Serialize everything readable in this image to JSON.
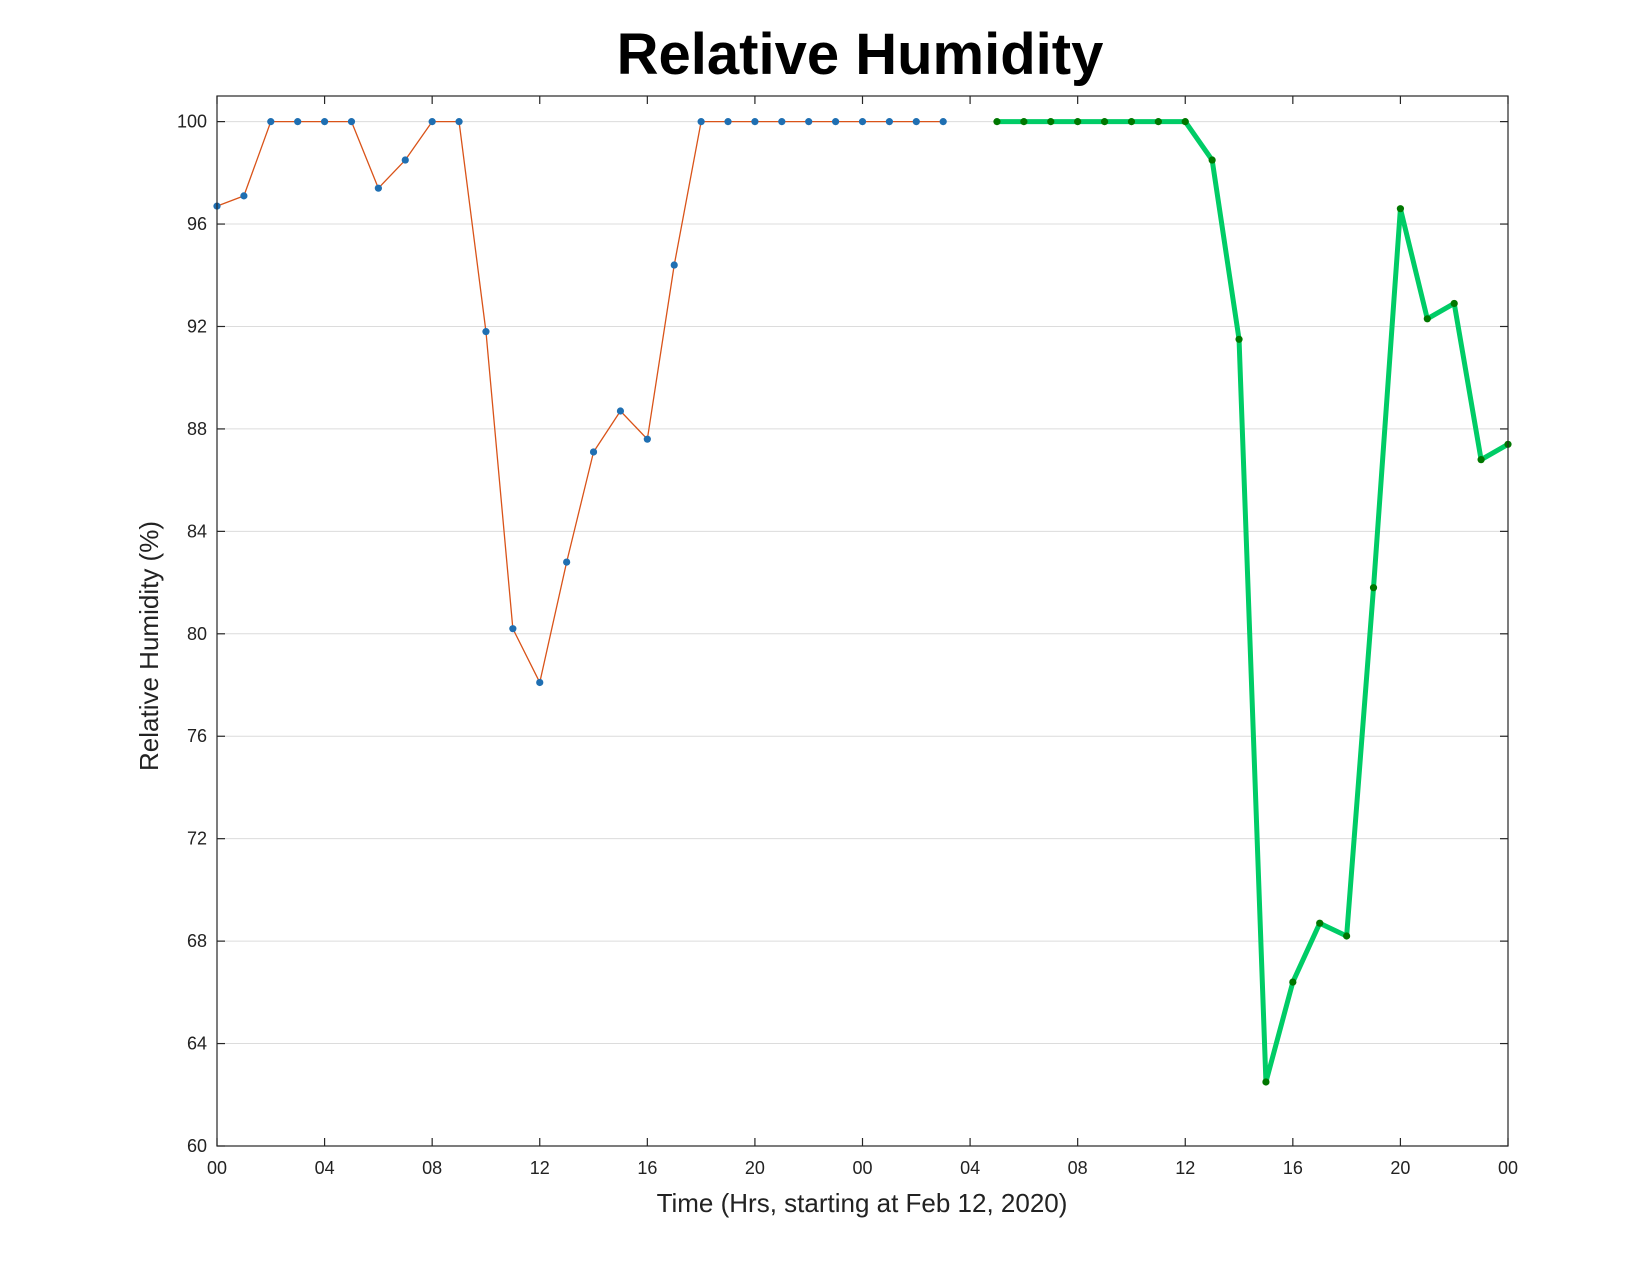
{
  "chart_data": {
    "type": "line",
    "title": "Relative Humidity",
    "xlabel": "Time (Hrs, starting at Feb 12, 2020)",
    "ylabel": "Relative Humidity (%)",
    "xlim": [
      0,
      48
    ],
    "ylim": [
      60,
      101
    ],
    "x_tick_values": [
      0,
      4,
      8,
      12,
      16,
      20,
      24,
      28,
      32,
      36,
      40,
      44,
      48
    ],
    "x_tick_labels": [
      "00",
      "04",
      "08",
      "12",
      "16",
      "20",
      "00",
      "04",
      "08",
      "12",
      "16",
      "20",
      "00"
    ],
    "y_ticks": [
      60,
      64,
      68,
      72,
      76,
      80,
      84,
      88,
      92,
      96,
      100
    ],
    "grid": "horizontal",
    "series": [
      {
        "color": "#d95319",
        "marker_color": "#1f6fb2",
        "x": [
          0,
          1,
          2,
          3,
          4,
          5,
          6,
          7,
          8,
          9,
          10,
          11,
          12,
          13,
          14,
          15,
          16,
          17,
          18,
          19,
          20,
          21,
          22,
          23,
          24,
          25,
          26,
          27
        ],
        "values": [
          96.7,
          97.1,
          100,
          100,
          100,
          100,
          97.4,
          98.5,
          100,
          100,
          91.8,
          80.2,
          78.1,
          82.8,
          87.1,
          88.7,
          87.6,
          94.4,
          100,
          100,
          100,
          100,
          100,
          100,
          100,
          100,
          100,
          100
        ]
      },
      {
        "color": "#00cc66",
        "marker_color": "#007700",
        "x": [
          29,
          30,
          31,
          32,
          33,
          34,
          35,
          36,
          37,
          38,
          39,
          40,
          41,
          42,
          43,
          44,
          45,
          46,
          47,
          48
        ],
        "values": [
          100,
          100,
          100,
          100,
          100,
          100,
          100,
          100,
          98.5,
          91.5,
          62.5,
          66.4,
          68.7,
          68.2,
          81.8,
          96.6,
          92.3,
          92.9,
          86.8,
          87.4
        ]
      }
    ]
  }
}
